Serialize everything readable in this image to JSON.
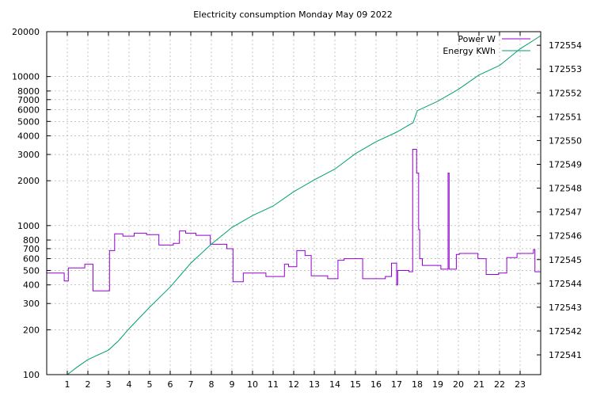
{
  "chart_data": {
    "type": "line",
    "title": "Electricity consumption Monday May 09 2022",
    "xlabel": "",
    "ylabel": "",
    "y2label": "",
    "xlim": [
      0,
      24
    ],
    "ylim": [
      100,
      20000
    ],
    "yscale": "log",
    "y2lim": [
      172540.17,
      172554.57
    ],
    "grid": true,
    "legend_position": "top-right",
    "x_ticks": [
      1,
      2,
      3,
      4,
      5,
      6,
      7,
      8,
      9,
      10,
      11,
      12,
      13,
      14,
      15,
      16,
      17,
      18,
      19,
      20,
      21,
      22,
      23
    ],
    "y_ticks": [
      {
        "value": 100,
        "label": "100"
      },
      {
        "value": 200,
        "label": "200"
      },
      {
        "value": 300,
        "label": "300"
      },
      {
        "value": 400,
        "label": "400"
      },
      {
        "value": 500,
        "label": "500"
      },
      {
        "value": 600,
        "label": "600"
      },
      {
        "value": 700,
        "label": "700"
      },
      {
        "value": 800,
        "label": "800"
      },
      {
        "value": 1000,
        "label": "1000"
      },
      {
        "value": 2000,
        "label": "2000"
      },
      {
        "value": 3000,
        "label": "3000"
      },
      {
        "value": 4000,
        "label": "4000"
      },
      {
        "value": 5000,
        "label": "5000"
      },
      {
        "value": 6000,
        "label": "6000"
      },
      {
        "value": 7000,
        "label": "7000"
      },
      {
        "value": 8000,
        "label": "8000"
      },
      {
        "value": 10000,
        "label": "10000"
      },
      {
        "value": 20000,
        "label": "20000"
      }
    ],
    "y2_ticks": [
      172541,
      172542,
      172543,
      172544,
      172545,
      172546,
      172547,
      172548,
      172549,
      172550,
      172551,
      172552,
      172553,
      172554
    ],
    "series": [
      {
        "name": "Power W",
        "axis": "y",
        "color": "#9400d3",
        "step": true,
        "points": [
          [
            0.0,
            480
          ],
          [
            0.8,
            480
          ],
          [
            0.85,
            425
          ],
          [
            1.0,
            425
          ],
          [
            1.05,
            520
          ],
          [
            1.8,
            520
          ],
          [
            1.85,
            550
          ],
          [
            2.2,
            550
          ],
          [
            2.25,
            365
          ],
          [
            3.0,
            365
          ],
          [
            3.05,
            680
          ],
          [
            3.25,
            680
          ],
          [
            3.3,
            880
          ],
          [
            3.65,
            880
          ],
          [
            3.7,
            850
          ],
          [
            4.2,
            850
          ],
          [
            4.25,
            890
          ],
          [
            4.8,
            890
          ],
          [
            4.85,
            870
          ],
          [
            5.4,
            870
          ],
          [
            5.45,
            740
          ],
          [
            6.1,
            740
          ],
          [
            6.15,
            760
          ],
          [
            6.4,
            760
          ],
          [
            6.45,
            920
          ],
          [
            6.7,
            920
          ],
          [
            6.75,
            890
          ],
          [
            7.2,
            890
          ],
          [
            7.25,
            860
          ],
          [
            7.9,
            860
          ],
          [
            7.95,
            750
          ],
          [
            8.7,
            750
          ],
          [
            8.75,
            700
          ],
          [
            9.0,
            700
          ],
          [
            9.05,
            420
          ],
          [
            9.5,
            420
          ],
          [
            9.55,
            480
          ],
          [
            10.6,
            480
          ],
          [
            10.65,
            455
          ],
          [
            11.5,
            455
          ],
          [
            11.55,
            550
          ],
          [
            11.7,
            550
          ],
          [
            11.75,
            530
          ],
          [
            12.1,
            530
          ],
          [
            12.15,
            680
          ],
          [
            12.5,
            680
          ],
          [
            12.55,
            630
          ],
          [
            12.8,
            630
          ],
          [
            12.85,
            460
          ],
          [
            13.6,
            460
          ],
          [
            13.65,
            440
          ],
          [
            14.1,
            440
          ],
          [
            14.15,
            585
          ],
          [
            14.4,
            585
          ],
          [
            14.45,
            600
          ],
          [
            15.3,
            600
          ],
          [
            15.35,
            440
          ],
          [
            16.4,
            440
          ],
          [
            16.45,
            455
          ],
          [
            16.7,
            455
          ],
          [
            16.75,
            560
          ],
          [
            16.95,
            560
          ],
          [
            17.0,
            400
          ],
          [
            17.05,
            500
          ],
          [
            17.5,
            500
          ],
          [
            17.6,
            490
          ],
          [
            17.75,
            490
          ],
          [
            17.78,
            3250
          ],
          [
            17.95,
            3250
          ],
          [
            17.97,
            2250
          ],
          [
            18.05,
            2250
          ],
          [
            18.07,
            940
          ],
          [
            18.1,
            940
          ],
          [
            18.12,
            600
          ],
          [
            18.2,
            600
          ],
          [
            18.25,
            540
          ],
          [
            19.1,
            540
          ],
          [
            19.15,
            510
          ],
          [
            19.45,
            510
          ],
          [
            19.5,
            2250
          ],
          [
            19.55,
            510
          ],
          [
            19.85,
            510
          ],
          [
            19.9,
            640
          ],
          [
            20.0,
            640
          ],
          [
            20.05,
            650
          ],
          [
            20.9,
            650
          ],
          [
            20.95,
            600
          ],
          [
            21.3,
            600
          ],
          [
            21.35,
            470
          ],
          [
            21.9,
            470
          ],
          [
            21.95,
            480
          ],
          [
            22.3,
            480
          ],
          [
            22.35,
            610
          ],
          [
            22.8,
            610
          ],
          [
            22.85,
            650
          ],
          [
            23.6,
            650
          ],
          [
            23.65,
            690
          ],
          [
            23.7,
            690
          ],
          [
            23.72,
            490
          ],
          [
            24.0,
            490
          ]
        ]
      },
      {
        "name": "Energy KWh",
        "axis": "y2",
        "color": "#009e73",
        "step": false,
        "points": [
          [
            1.0,
            172540.17
          ],
          [
            1.5,
            172540.5
          ],
          [
            2.0,
            172540.8
          ],
          [
            3.0,
            172541.2
          ],
          [
            3.5,
            172541.6
          ],
          [
            4.0,
            172542.1
          ],
          [
            5.0,
            172543.0
          ],
          [
            6.0,
            172543.85
          ],
          [
            7.0,
            172544.85
          ],
          [
            8.0,
            172545.65
          ],
          [
            9.0,
            172546.35
          ],
          [
            10.0,
            172546.85
          ],
          [
            11.0,
            172547.25
          ],
          [
            12.0,
            172547.85
          ],
          [
            13.0,
            172548.35
          ],
          [
            14.0,
            172548.8
          ],
          [
            15.0,
            172549.45
          ],
          [
            16.0,
            172549.95
          ],
          [
            17.0,
            172550.35
          ],
          [
            17.8,
            172550.75
          ],
          [
            18.0,
            172551.25
          ],
          [
            19.0,
            172551.65
          ],
          [
            20.0,
            172552.15
          ],
          [
            21.0,
            172552.75
          ],
          [
            22.0,
            172553.15
          ],
          [
            23.0,
            172553.85
          ],
          [
            24.0,
            172554.4
          ]
        ]
      }
    ]
  }
}
